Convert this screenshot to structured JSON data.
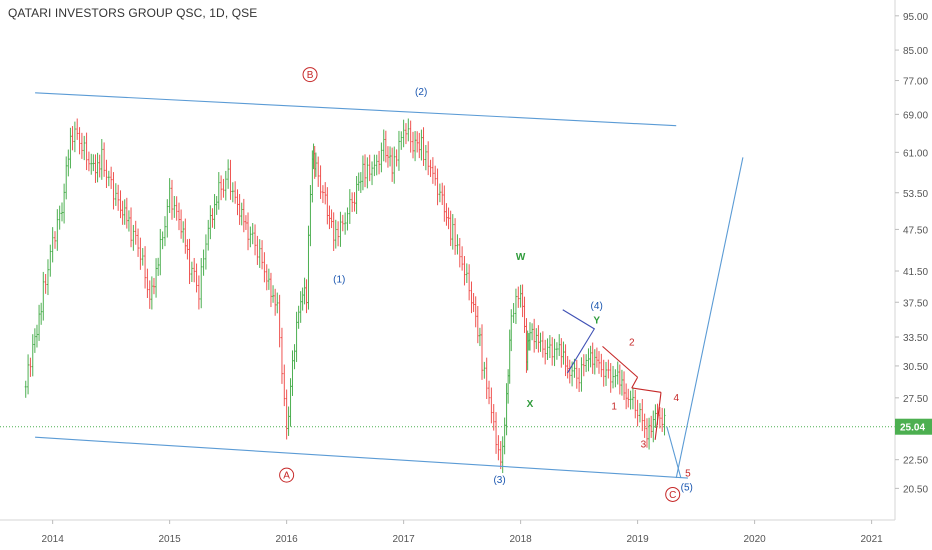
{
  "header": {
    "symbol_title": "QATARI INVESTORS GROUP QSC, 1D, QSE"
  },
  "chart_data": {
    "type": "line",
    "title": "QATARI INVESTORS GROUP QSC, 1D, QSE",
    "xlabel": "",
    "ylabel": "",
    "price_scale": "log",
    "y_ticks": [
      "95.00",
      "85.00",
      "77.00",
      "69.00",
      "61.00",
      "53.50",
      "47.50",
      "41.50",
      "37.50",
      "33.50",
      "30.50",
      "27.50",
      "25.04",
      "22.50",
      "20.50"
    ],
    "x_ticks": [
      "2014",
      "2015",
      "2016",
      "2017",
      "2018",
      "2019",
      "2020",
      "2021"
    ],
    "last_price": "25.04",
    "last_price_color": "#4caf50",
    "up_color": "#4caf50",
    "down_color": "#ef5350",
    "trendline_color": "#5b9bd5",
    "xlim": [
      2013.55,
      2021.2
    ],
    "ylim": [
      18.5,
      100.0
    ],
    "series": [
      {
        "x": [
          2013.77,
          2013.83,
          2013.92,
          2014.0,
          2014.08,
          2014.17,
          2014.25,
          2014.33,
          2014.42,
          2014.5,
          2014.58,
          2014.67,
          2014.75,
          2014.83,
          2014.92,
          2015.0,
          2015.08,
          2015.17,
          2015.25,
          2015.33,
          2015.42,
          2015.5,
          2015.58,
          2015.67,
          2015.75,
          2015.83,
          2015.92,
          2016.0,
          2016.05,
          2016.12,
          2016.17,
          2016.22,
          2016.25,
          2016.33,
          2016.42,
          2016.5,
          2016.58,
          2016.67,
          2016.75,
          2016.83,
          2016.92,
          2017.0,
          2017.08,
          2017.17,
          2017.25,
          2017.33,
          2017.42,
          2017.5,
          2017.58,
          2017.67,
          2017.75,
          2017.83,
          2017.88,
          2017.92,
          2018.0,
          2018.05,
          2018.08,
          2018.17,
          2018.25,
          2018.33,
          2018.42,
          2018.5,
          2018.58,
          2018.67,
          2018.75,
          2018.83,
          2018.92,
          2019.0,
          2019.08,
          2019.17,
          2019.25
        ],
        "y": [
          28.5,
          31.5,
          38.5,
          46,
          52,
          66,
          62,
          57,
          59,
          55,
          52,
          48,
          44,
          37,
          44,
          53,
          50,
          43,
          39,
          47,
          53,
          56,
          52,
          48,
          45,
          40,
          36,
          24,
          31,
          39,
          39,
          60,
          57,
          51,
          47,
          50,
          54,
          57,
          57,
          61,
          59,
          67,
          64,
          61,
          56,
          51,
          47,
          43,
          39,
          31,
          26,
          21.5,
          27,
          36,
          40,
          32,
          34,
          32,
          31.5,
          32.5,
          30.5,
          30,
          31.5,
          30,
          29,
          29.5,
          28,
          27,
          24.5,
          25.5,
          25.04
        ]
      }
    ],
    "annotations": {
      "circled_red": [
        {
          "text": "A",
          "x": 2016.0,
          "y": 21.4
        },
        {
          "text": "B",
          "x": 2016.2,
          "y": 78.5
        },
        {
          "text": "C",
          "x": 2019.3,
          "y": 20.1
        }
      ],
      "blue_labels": [
        {
          "text": "(1)",
          "x": 2016.45,
          "y": 40.0
        },
        {
          "text": "(2)",
          "x": 2017.15,
          "y": 73.5
        },
        {
          "text": "(3)",
          "x": 2017.82,
          "y": 20.85
        },
        {
          "text": "(4)",
          "x": 2018.65,
          "y": 36.7
        },
        {
          "text": "(5)",
          "x": 2019.42,
          "y": 20.35
        }
      ],
      "green_labels": [
        {
          "text": "W",
          "x": 2018.0,
          "y": 43.0
        },
        {
          "text": "X",
          "x": 2018.08,
          "y": 26.7
        },
        {
          "text": "Y",
          "x": 2018.65,
          "y": 35.0
        }
      ],
      "red_labels": [
        {
          "text": "1",
          "x": 2018.8,
          "y": 26.5
        },
        {
          "text": "2",
          "x": 2018.95,
          "y": 32.6
        },
        {
          "text": "3",
          "x": 2019.05,
          "y": 23.4
        },
        {
          "text": "4",
          "x": 2019.33,
          "y": 27.2
        },
        {
          "text": "5",
          "x": 2019.43,
          "y": 21.3
        }
      ]
    },
    "trendlines": [
      {
        "x1": 2013.85,
        "y1": 74.0,
        "x2": 2019.33,
        "y2": 66.5
      },
      {
        "x1": 2013.85,
        "y1": 24.2,
        "x2": 2019.43,
        "y2": 21.2
      }
    ],
    "projection": [
      {
        "x": 2019.33,
        "y": 21.2
      },
      {
        "x": 2019.9,
        "y": 60.0
      }
    ],
    "current_wave": [
      {
        "x": 2019.25,
        "y": 25.04
      },
      {
        "x": 2019.37,
        "y": 21.2
      }
    ],
    "wave4_triangle": [
      {
        "x": 2018.36,
        "y": 36.6
      },
      {
        "x": 2018.63,
        "y": 34.4
      },
      {
        "x": 2018.4,
        "y": 29.8
      }
    ],
    "wave_channel_red": [
      {
        "x": 2018.7,
        "y": 32.5
      },
      {
        "x": 2019.0,
        "y": 29.4
      },
      {
        "x": 2018.95,
        "y": 28.4
      },
      {
        "x": 2019.2,
        "y": 28.0
      },
      {
        "x": 2019.15,
        "y": 24.0
      }
    ]
  }
}
